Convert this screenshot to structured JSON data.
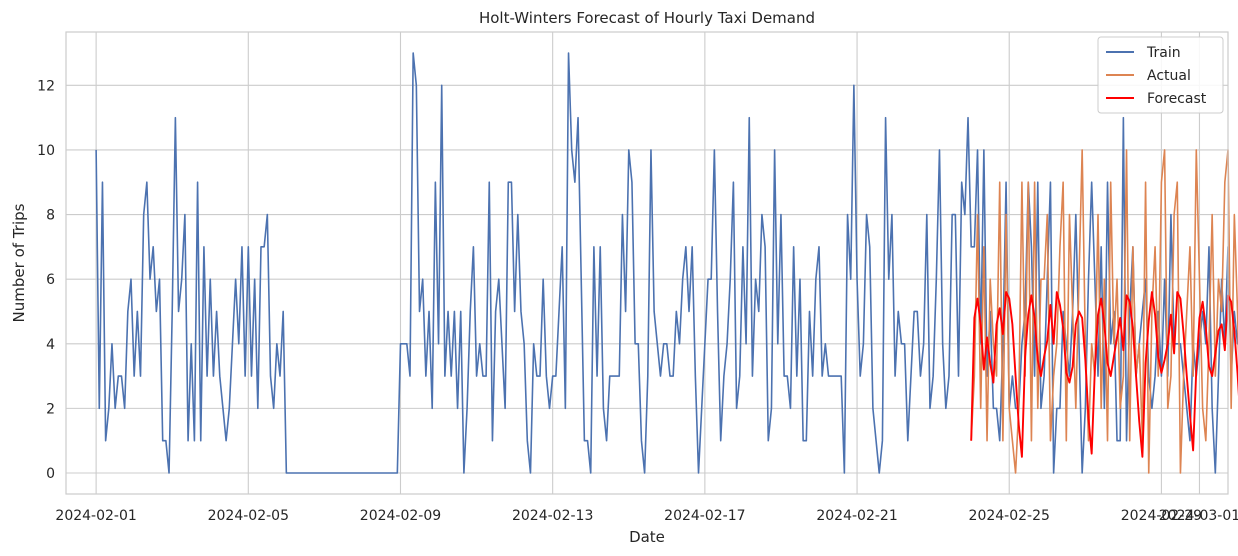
{
  "chart_data": {
    "type": "line",
    "title": "Holt-Winters Forecast of Hourly Taxi Demand",
    "xlabel": "Date",
    "ylabel": "Number of Trips",
    "xlim": [
      "2024-01-31T05:00",
      "2024-03-01T18:00"
    ],
    "ylim": [
      -0.65,
      13.65
    ],
    "yticks": [
      0,
      2,
      4,
      6,
      8,
      10,
      12
    ],
    "xticks": [
      "2024-02-01",
      "2024-02-05",
      "2024-02-09",
      "2024-02-13",
      "2024-02-17",
      "2024-02-21",
      "2024-02-25",
      "2024-02-29",
      "2024-03-01"
    ],
    "grid": true,
    "legend": "top-right",
    "split_date": "2024-02-24T00:00",
    "series": [
      {
        "name": "Train",
        "color": "#4c72b0",
        "x_start": "2024-02-01T00:00",
        "x_step_hours": 2,
        "values": [
          10,
          2,
          9,
          1,
          2,
          4,
          2,
          3,
          3,
          2,
          5,
          6,
          3,
          5,
          3,
          8,
          9,
          6,
          7,
          5,
          6,
          1,
          1,
          0,
          5,
          11,
          5,
          6,
          8,
          1,
          4,
          1,
          9,
          1,
          7,
          3,
          6,
          3,
          5,
          3,
          2,
          1,
          2,
          4,
          6,
          4,
          7,
          3,
          7,
          3,
          6,
          2,
          7,
          7,
          8,
          3,
          2,
          4,
          3,
          5,
          0,
          0,
          0,
          0,
          0,
          0,
          0,
          0,
          0,
          0,
          0,
          0,
          0,
          0,
          0,
          0,
          0,
          0,
          0,
          0,
          0,
          0,
          0,
          0,
          0,
          0,
          0,
          0,
          0,
          0,
          0,
          0,
          0,
          0,
          0,
          0,
          4,
          4,
          4,
          3,
          13,
          12,
          5,
          6,
          3,
          5,
          2,
          9,
          4,
          12,
          3,
          5,
          3,
          5,
          2,
          5,
          0,
          2,
          5,
          7,
          3,
          4,
          3,
          3,
          9,
          1,
          5,
          6,
          4,
          2,
          9,
          9,
          5,
          8,
          5,
          4,
          1,
          0,
          4,
          3,
          3,
          6,
          3,
          2,
          3,
          3,
          5,
          7,
          2,
          13,
          10,
          9,
          11,
          6,
          1,
          1,
          0,
          7,
          3,
          7,
          2,
          1,
          3,
          3,
          3,
          3,
          8,
          5,
          10,
          9,
          4,
          4,
          1,
          0,
          3,
          10,
          5,
          4,
          3,
          4,
          4,
          3,
          3,
          5,
          4,
          6,
          7,
          5,
          7,
          3,
          0,
          2,
          4,
          6,
          6,
          10,
          5,
          1,
          3,
          4,
          6,
          9,
          2,
          3,
          7,
          4,
          11,
          3,
          6,
          5,
          8,
          7,
          1,
          2,
          10,
          4,
          8,
          3,
          3,
          2,
          7,
          3,
          6,
          1,
          1,
          5,
          3,
          6,
          7,
          3,
          4,
          3,
          3,
          3,
          3,
          3,
          0,
          8,
          6,
          12,
          6,
          3,
          4,
          8,
          7,
          2,
          1,
          0,
          1,
          11,
          6,
          8,
          3,
          5,
          4,
          4,
          1,
          3,
          5,
          5,
          3,
          4,
          8,
          2,
          3,
          6,
          10,
          4,
          2,
          3,
          8,
          8,
          3,
          9,
          8,
          11,
          7,
          7,
          10,
          4,
          10,
          3,
          5,
          2,
          2,
          1,
          4,
          9,
          2,
          3,
          2,
          2,
          4,
          5,
          9,
          7,
          3,
          9,
          2,
          3,
          6,
          9,
          0,
          2,
          2,
          5,
          4,
          3,
          5,
          8,
          4,
          0,
          2,
          6,
          9,
          6,
          3,
          7,
          2,
          9,
          4,
          5,
          1,
          1,
          11,
          1,
          5,
          7,
          3,
          4,
          5,
          6,
          3,
          2,
          3,
          5,
          3,
          6,
          3,
          8,
          4,
          4,
          4,
          3,
          2,
          1,
          4,
          3,
          4,
          5,
          4,
          7,
          2,
          0,
          3,
          6,
          4,
          7,
          3,
          5,
          4,
          6,
          8,
          3,
          7,
          3,
          5,
          2,
          5,
          1,
          2,
          1,
          7,
          6,
          3,
          1,
          5,
          3,
          4,
          2,
          7,
          4,
          12,
          5,
          2,
          5,
          3,
          5,
          6,
          1,
          3,
          3,
          3,
          4,
          2,
          5,
          6,
          4,
          5,
          4,
          6,
          4,
          8,
          2,
          3,
          5,
          9,
          4,
          2,
          4,
          2,
          3,
          3,
          4,
          3,
          7,
          5,
          6,
          4,
          9,
          4,
          6,
          12,
          1,
          3,
          1,
          3,
          6,
          6,
          4,
          3,
          5,
          4,
          2,
          5,
          3,
          6,
          3,
          13,
          12,
          3,
          2,
          1,
          3,
          5,
          6,
          3,
          5,
          4,
          12,
          8,
          3,
          5,
          4,
          7,
          2,
          5,
          2,
          5,
          3,
          5,
          4,
          4,
          3,
          5,
          5,
          7,
          8,
          3,
          1,
          2,
          6,
          4,
          10,
          7,
          3,
          7,
          5,
          4,
          3,
          5,
          4,
          6,
          4,
          3,
          5,
          8,
          7,
          2,
          5,
          4,
          3,
          6
        ]
      },
      {
        "name": "Actual",
        "color": "#dd8452",
        "x_start": "2024-02-24T00:00",
        "x_step_hours": 2,
        "values": [
          1,
          3,
          8,
          2,
          7,
          1,
          6,
          4,
          3,
          9,
          1,
          8,
          2,
          1,
          0,
          2,
          9,
          3,
          9,
          1,
          9,
          2,
          6,
          6,
          8,
          1,
          3,
          4,
          7,
          9,
          1,
          8,
          5,
          2,
          6,
          10,
          4,
          1,
          4,
          3,
          8,
          2,
          6,
          1,
          9,
          4,
          6,
          2,
          3,
          10,
          1,
          7,
          3,
          4,
          1,
          9,
          0,
          5,
          7,
          3,
          9,
          10,
          2,
          3,
          8,
          9,
          0,
          3,
          5,
          7,
          3,
          10,
          6,
          2,
          1,
          4,
          8,
          3,
          6,
          5,
          9,
          10,
          2,
          8,
          5,
          1,
          3,
          7,
          4,
          9,
          1,
          4,
          3,
          9,
          2,
          8,
          5,
          1,
          9,
          6,
          11
        ]
      },
      {
        "name": "Forecast",
        "color": "#ff0000",
        "x_start": "2024-02-24T00:00",
        "x_step_hours": 2,
        "values": [
          1.0,
          4.8,
          5.4,
          4.6,
          3.2,
          4.2,
          3.4,
          2.8,
          4.6,
          5.1,
          4.3,
          5.6,
          5.4,
          4.6,
          3.0,
          1.5,
          0.5,
          3.6,
          4.9,
          5.5,
          4.8,
          3.5,
          3.0,
          3.6,
          4.1,
          5.2,
          4.0,
          5.6,
          5.2,
          4.5,
          3.1,
          2.8,
          3.3,
          4.6,
          5.0,
          4.8,
          3.5,
          1.7,
          0.6,
          3.2,
          4.9,
          5.4,
          4.6,
          3.4,
          3.0,
          3.6,
          4.2,
          4.8,
          3.8,
          5.5,
          5.3,
          4.5,
          3.0,
          1.6,
          0.5,
          3.4,
          4.7,
          5.6,
          4.9,
          3.6,
          3.1,
          3.5,
          4.0,
          4.9,
          3.7,
          5.6,
          5.4,
          4.3,
          3.0,
          1.8,
          0.7,
          3.2,
          4.8,
          5.3,
          4.5,
          3.3,
          3.0,
          3.7,
          4.4,
          4.6,
          3.8,
          5.5,
          5.3,
          4.4,
          3.1,
          1.5,
          0.5,
          3.3,
          4.6,
          5.2,
          4.7,
          3.5,
          2.9,
          3.4,
          4.1,
          4.9,
          3.8,
          5.4,
          5.3,
          5.0,
          5.3
        ]
      }
    ]
  }
}
